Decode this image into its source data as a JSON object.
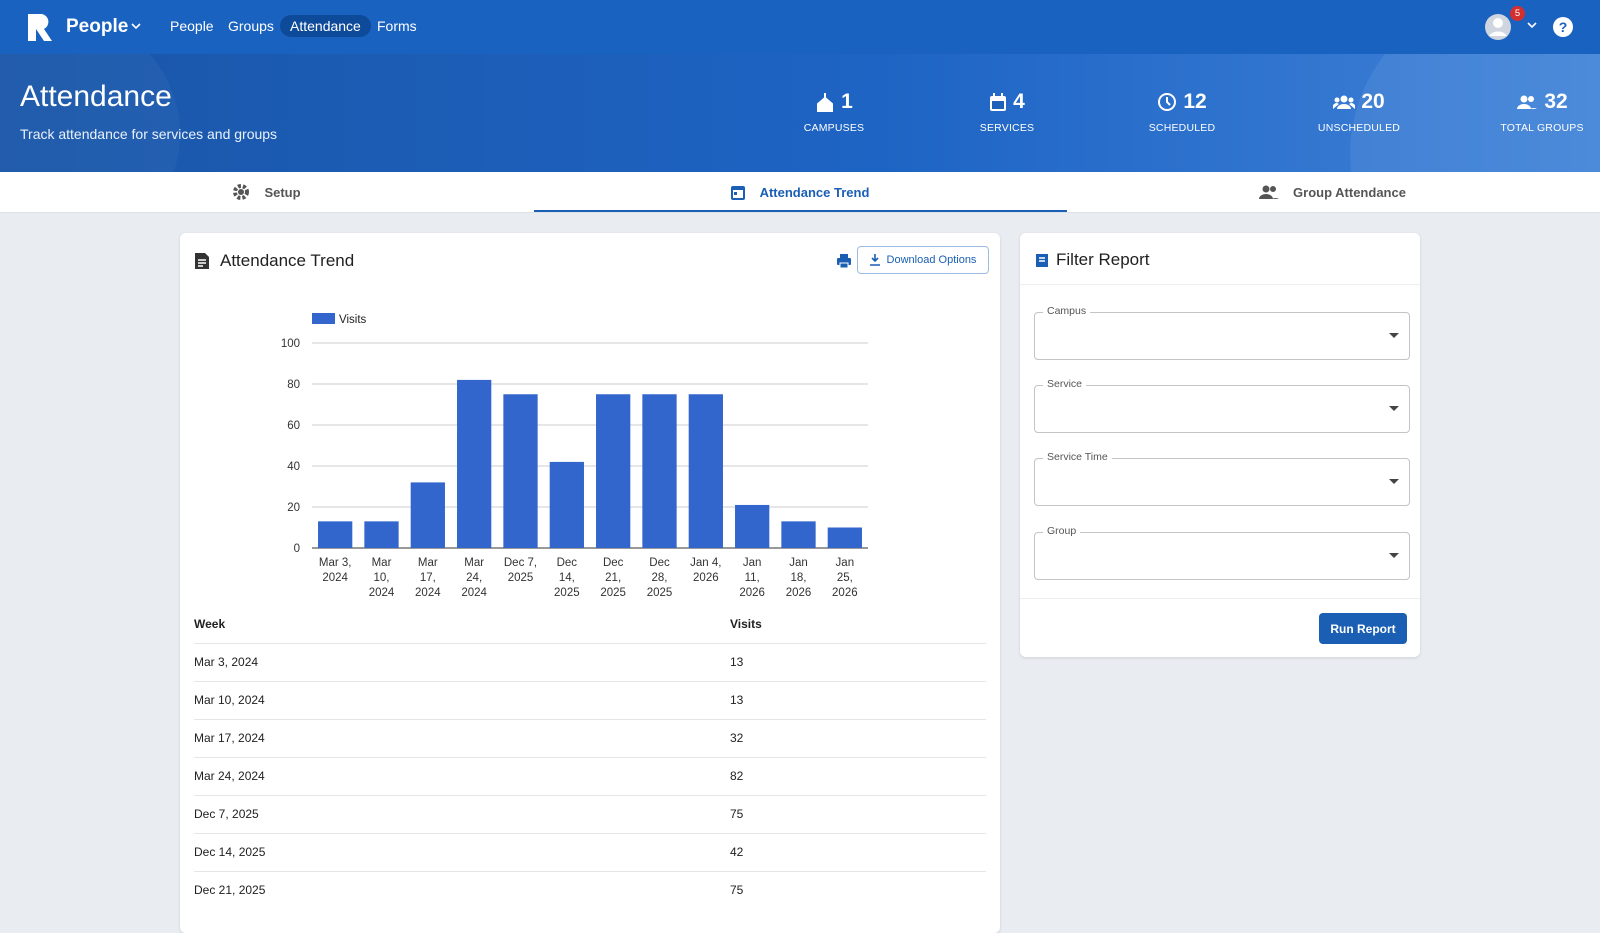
{
  "nav": {
    "brand": "People",
    "links": [
      "People",
      "Groups",
      "Attendance",
      "Forms"
    ],
    "badge": "5"
  },
  "header": {
    "title": "Attendance",
    "subtitle": "Track attendance for services and groups",
    "stats": [
      {
        "value": 1,
        "label": "CAMPUSES"
      },
      {
        "value": 4,
        "label": "SERVICES"
      },
      {
        "value": 12,
        "label": "SCHEDULED"
      },
      {
        "value": 20,
        "label": "UNSCHEDULED"
      },
      {
        "value": 32,
        "label": "TOTAL GROUPS"
      }
    ]
  },
  "tabs": [
    "Setup",
    "Attendance Trend",
    "Group Attendance"
  ],
  "report": {
    "title": "Attendance Trend",
    "download": "Download Options",
    "table": {
      "headers": [
        "Week",
        "Visits"
      ],
      "rows": [
        [
          "Mar 3, 2024",
          13
        ],
        [
          "Mar 10, 2024",
          13
        ],
        [
          "Mar 17, 2024",
          32
        ],
        [
          "Mar 24, 2024",
          82
        ],
        [
          "Dec 7, 2025",
          75
        ],
        [
          "Dec 14, 2025",
          42
        ],
        [
          "Dec 21, 2025",
          75
        ]
      ]
    }
  },
  "chart_data": {
    "type": "bar",
    "categories": [
      "Mar 3, 2024",
      "Mar 10, 2024",
      "Mar 17, 2024",
      "Mar 24, 2024",
      "Dec 7, 2025",
      "Dec 14, 2025",
      "Dec 21, 2025",
      "Dec 28, 2025",
      "Jan 4, 2026",
      "Jan 11, 2026",
      "Jan 18, 2026",
      "Jan 25, 2026"
    ],
    "series": [
      {
        "name": "Visits",
        "color": "#3366cc",
        "values": [
          13,
          13,
          32,
          82,
          75,
          42,
          75,
          75,
          75,
          21,
          13,
          10
        ]
      }
    ],
    "ylim": [
      0,
      100
    ],
    "yticks": [
      0,
      20,
      40,
      60,
      80,
      100
    ],
    "grid": true,
    "legend": "top-left"
  },
  "filter": {
    "title": "Filter Report",
    "fields": [
      "Campus",
      "Service",
      "Service Time",
      "Group"
    ],
    "button": "Run Report"
  }
}
